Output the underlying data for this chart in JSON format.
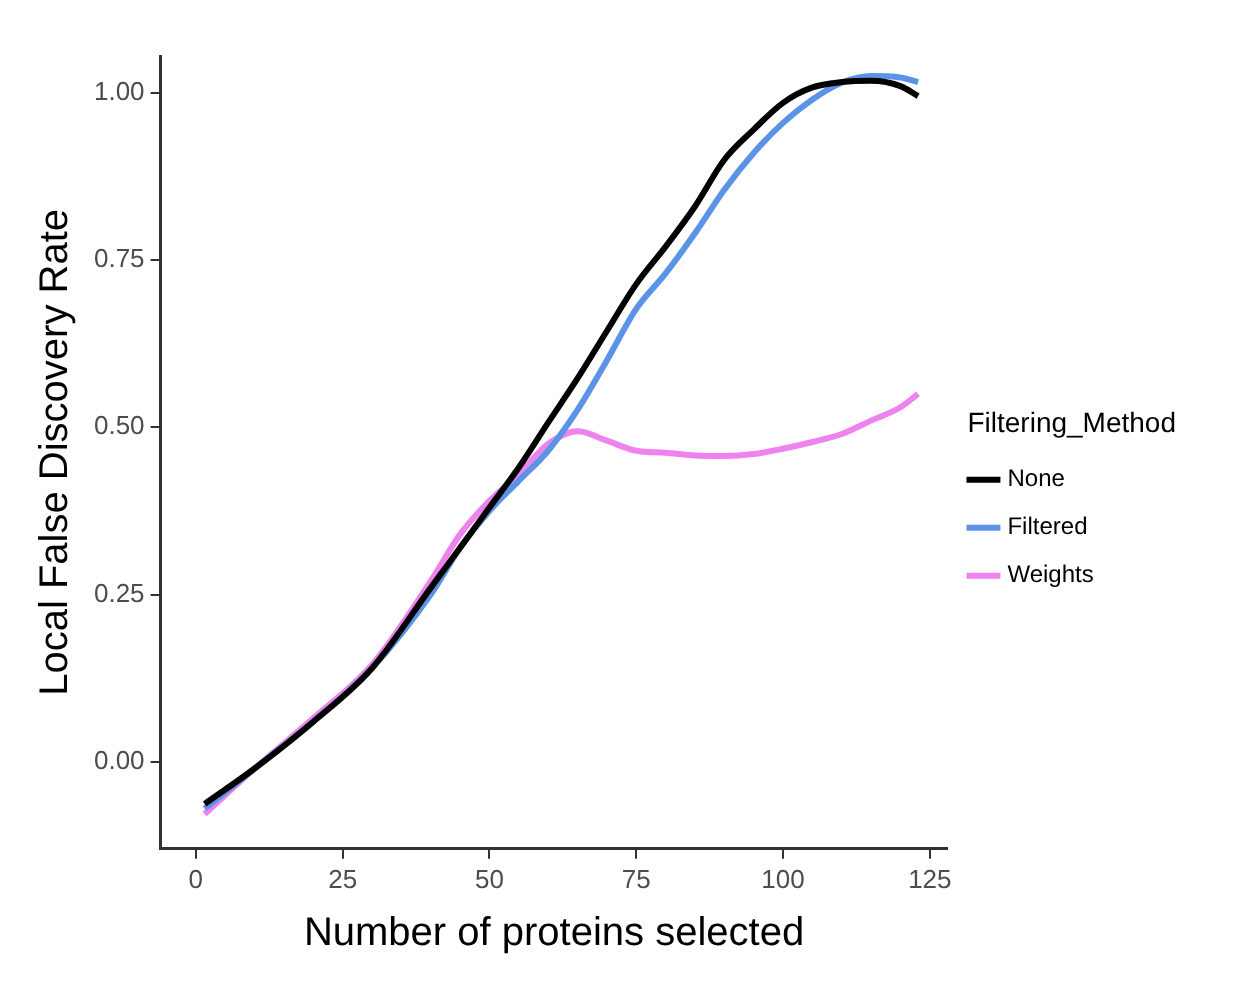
{
  "chart_data": {
    "type": "line",
    "xlabel": "Number of proteins selected",
    "ylabel": "Local False Discovery Rate",
    "legend_title": "Filtering_Method",
    "legend": "right",
    "grid": false,
    "marker": "none",
    "line_style": "solid",
    "xlim": [
      -6,
      128
    ],
    "xticks": [
      0,
      25,
      50,
      75,
      100,
      125
    ],
    "ylim": [
      -0.13,
      1.055
    ],
    "yticks": [
      {
        "value": 0,
        "label": "0.00"
      },
      {
        "value": 0.25,
        "label": "0.25"
      },
      {
        "value": 0.5,
        "label": "0.50"
      },
      {
        "value": 0.75,
        "label": "0.75"
      },
      {
        "value": 1,
        "label": "1.00"
      }
    ],
    "x": [
      1.5,
      10,
      20,
      30,
      40,
      45,
      50,
      55,
      60,
      65,
      70,
      75,
      80,
      85,
      90,
      95,
      100,
      105,
      110,
      115,
      120,
      123
    ],
    "series": [
      {
        "name": "None",
        "color": "#000000",
        "values": [
          -0.063,
          -0.01,
          0.06,
          0.14,
          0.26,
          0.32,
          0.38,
          0.44,
          0.507,
          0.573,
          0.644,
          0.714,
          0.77,
          0.83,
          0.9,
          0.945,
          0.985,
          1.008,
          1.016,
          1.018,
          1.01,
          0.995
        ]
      },
      {
        "name": "Filtered",
        "color": "#5b93e6",
        "values": [
          -0.07,
          -0.01,
          0.06,
          0.14,
          0.25,
          0.32,
          0.375,
          0.42,
          0.465,
          0.526,
          0.6,
          0.677,
          0.73,
          0.79,
          0.855,
          0.91,
          0.955,
          0.99,
          1.015,
          1.025,
          1.023,
          1.016
        ]
      },
      {
        "name": "Weights",
        "color": "#ee82ee",
        "values": [
          -0.078,
          -0.01,
          0.065,
          0.145,
          0.27,
          0.34,
          0.39,
          0.43,
          0.475,
          0.494,
          0.48,
          0.465,
          0.462,
          0.458,
          0.457,
          0.46,
          0.468,
          0.478,
          0.49,
          0.51,
          0.53,
          0.55
        ]
      }
    ]
  }
}
